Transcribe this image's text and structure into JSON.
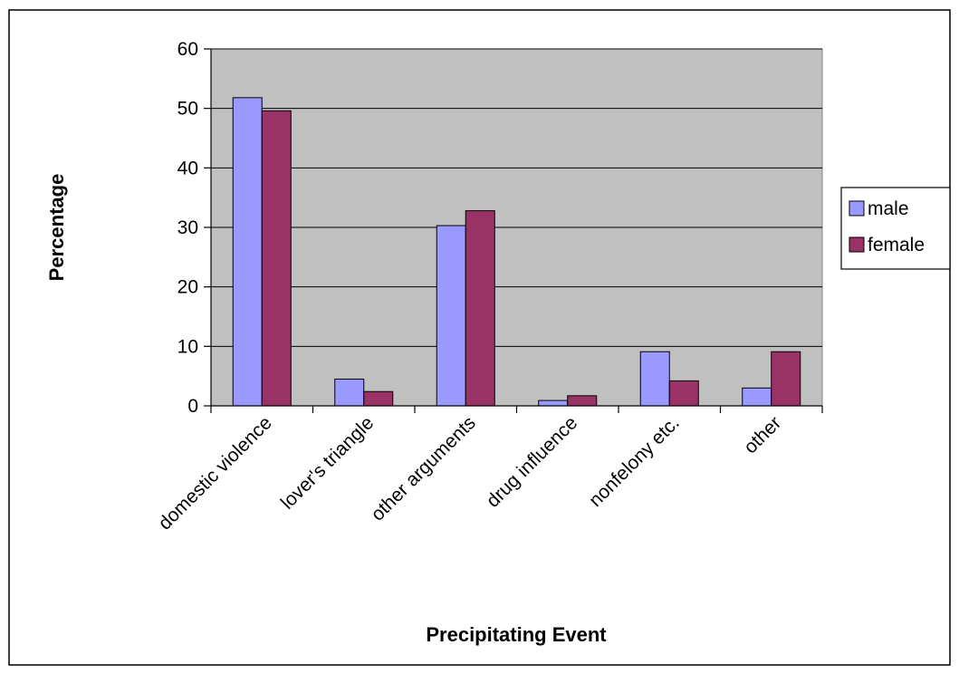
{
  "chart_data": {
    "type": "bar",
    "title": "",
    "xlabel": "Precipitating Event",
    "ylabel": "Percentage",
    "categories": [
      "domestic violence",
      "lover's triangle",
      "other arguments",
      "drug influence",
      "nonfelony etc.",
      "other"
    ],
    "series": [
      {
        "name": "male",
        "color": "#9999ff",
        "values": [
          51.8,
          4.5,
          30.3,
          0.9,
          9.1,
          3.0
        ]
      },
      {
        "name": "female",
        "color": "#993366",
        "values": [
          49.6,
          2.4,
          32.8,
          1.7,
          4.2,
          9.1
        ]
      }
    ],
    "ylim": [
      0,
      60
    ],
    "yticks": [
      0,
      10,
      20,
      30,
      40,
      50,
      60
    ],
    "grid": true,
    "plot_background": "#c0c0c0",
    "legend_position": "right"
  }
}
